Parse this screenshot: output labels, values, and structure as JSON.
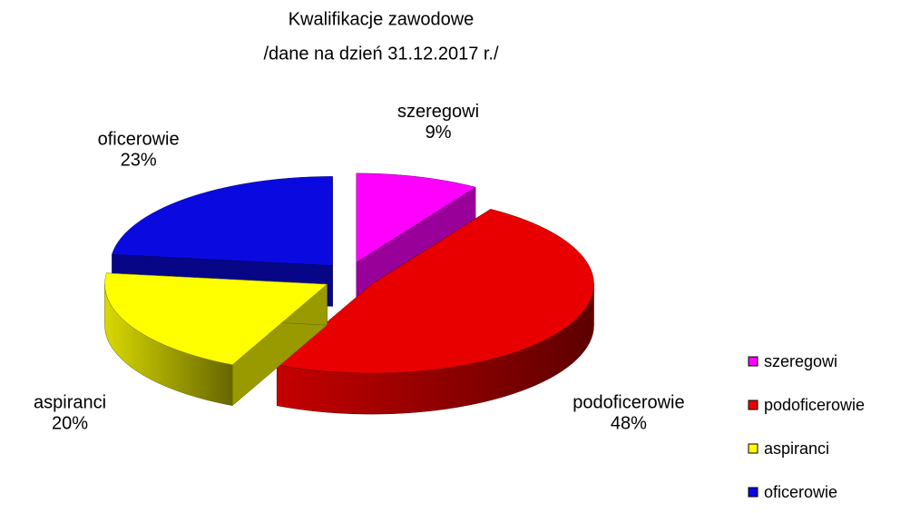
{
  "chart_data": {
    "type": "pie",
    "title": "Kwalifikacje zawodowe",
    "subtitle": "/dane na dzień 31.12.2017 r./",
    "categories": [
      "szeregowi",
      "podoficerowie",
      "aspiranci",
      "oficerowie"
    ],
    "values": [
      9,
      48,
      20,
      23
    ],
    "value_labels": [
      "9%",
      "48%",
      "20%",
      "23%"
    ],
    "colors": [
      "#ff00ff",
      "#e80000",
      "#ffff00",
      "#0a0ae0"
    ],
    "legend": "right"
  }
}
